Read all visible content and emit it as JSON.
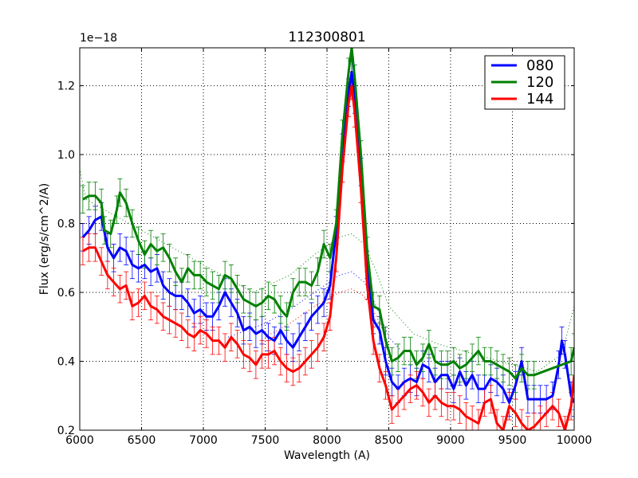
{
  "chart_data": {
    "type": "line",
    "title": "112300801",
    "xlabel": "Wavelength (A)",
    "ylabel": "Flux (erg/s/cm^2/A)",
    "y_offset_label": "1e−18",
    "xlim": [
      6000,
      10000
    ],
    "ylim": [
      0.2,
      1.31
    ],
    "x_ticks": [
      6000,
      6500,
      7000,
      7500,
      8000,
      8500,
      9000,
      9500,
      10000
    ],
    "x_tick_labels": [
      "6000",
      "6500",
      "7000",
      "7500",
      "8000",
      "8500",
      "9000",
      "9500",
      "10000"
    ],
    "y_ticks": [
      0.2,
      0.4,
      0.6,
      0.8,
      1.0,
      1.2
    ],
    "y_tick_labels": [
      "0.2",
      "0.4",
      "0.6",
      "0.8",
      "1.0",
      "1.2"
    ],
    "grid": true,
    "legend_position": "top-right",
    "series": [
      {
        "name": "080",
        "color": "#0000ff",
        "points": [
          [
            6025,
            0.76
          ],
          [
            6075,
            0.78
          ],
          [
            6125,
            0.81
          ],
          [
            6175,
            0.82
          ],
          [
            6225,
            0.73
          ],
          [
            6275,
            0.7
          ],
          [
            6325,
            0.73
          ],
          [
            6375,
            0.72
          ],
          [
            6425,
            0.68
          ],
          [
            6475,
            0.67
          ],
          [
            6525,
            0.68
          ],
          [
            6575,
            0.66
          ],
          [
            6625,
            0.67
          ],
          [
            6675,
            0.62
          ],
          [
            6725,
            0.6
          ],
          [
            6775,
            0.59
          ],
          [
            6825,
            0.59
          ],
          [
            6875,
            0.57
          ],
          [
            6925,
            0.54
          ],
          [
            6975,
            0.55
          ],
          [
            7025,
            0.53
          ],
          [
            7075,
            0.53
          ],
          [
            7125,
            0.56
          ],
          [
            7175,
            0.6
          ],
          [
            7225,
            0.57
          ],
          [
            7275,
            0.54
          ],
          [
            7325,
            0.49
          ],
          [
            7375,
            0.5
          ],
          [
            7425,
            0.48
          ],
          [
            7475,
            0.49
          ],
          [
            7525,
            0.47
          ],
          [
            7575,
            0.46
          ],
          [
            7625,
            0.49
          ],
          [
            7675,
            0.46
          ],
          [
            7725,
            0.44
          ],
          [
            7775,
            0.47
          ],
          [
            7825,
            0.5
          ],
          [
            7875,
            0.53
          ],
          [
            7925,
            0.55
          ],
          [
            7975,
            0.57
          ],
          [
            8025,
            0.62
          ],
          [
            8075,
            0.78
          ],
          [
            8125,
            1.02
          ],
          [
            8175,
            1.18
          ],
          [
            8200,
            1.24
          ],
          [
            8225,
            1.16
          ],
          [
            8275,
            0.95
          ],
          [
            8325,
            0.68
          ],
          [
            8375,
            0.52
          ],
          [
            8425,
            0.49
          ],
          [
            8475,
            0.4
          ],
          [
            8525,
            0.34
          ],
          [
            8575,
            0.32
          ],
          [
            8625,
            0.34
          ],
          [
            8675,
            0.35
          ],
          [
            8725,
            0.34
          ],
          [
            8775,
            0.39
          ],
          [
            8825,
            0.38
          ],
          [
            8875,
            0.34
          ],
          [
            8925,
            0.36
          ],
          [
            8975,
            0.36
          ],
          [
            9025,
            0.32
          ],
          [
            9075,
            0.37
          ],
          [
            9125,
            0.33
          ],
          [
            9175,
            0.36
          ],
          [
            9225,
            0.32
          ],
          [
            9275,
            0.32
          ],
          [
            9325,
            0.35
          ],
          [
            9375,
            0.34
          ],
          [
            9425,
            0.32
          ],
          [
            9475,
            0.28
          ],
          [
            9525,
            0.33
          ],
          [
            9575,
            0.4
          ],
          [
            9625,
            0.29
          ],
          [
            9675,
            0.29
          ],
          [
            9725,
            0.29
          ],
          [
            9775,
            0.29
          ],
          [
            9825,
            0.3
          ],
          [
            9875,
            0.39
          ],
          [
            9900,
            0.46
          ],
          [
            9925,
            0.42
          ],
          [
            9975,
            0.3
          ],
          [
            10000,
            0.28
          ]
        ]
      },
      {
        "name": "120",
        "color": "#008000",
        "points": [
          [
            6025,
            0.87
          ],
          [
            6075,
            0.88
          ],
          [
            6125,
            0.88
          ],
          [
            6175,
            0.86
          ],
          [
            6200,
            0.78
          ],
          [
            6250,
            0.77
          ],
          [
            6300,
            0.84
          ],
          [
            6325,
            0.89
          ],
          [
            6375,
            0.86
          ],
          [
            6425,
            0.8
          ],
          [
            6475,
            0.75
          ],
          [
            6525,
            0.71
          ],
          [
            6575,
            0.74
          ],
          [
            6625,
            0.72
          ],
          [
            6675,
            0.73
          ],
          [
            6725,
            0.7
          ],
          [
            6775,
            0.66
          ],
          [
            6825,
            0.63
          ],
          [
            6875,
            0.67
          ],
          [
            6925,
            0.65
          ],
          [
            6975,
            0.65
          ],
          [
            7025,
            0.63
          ],
          [
            7075,
            0.62
          ],
          [
            7125,
            0.61
          ],
          [
            7175,
            0.65
          ],
          [
            7225,
            0.64
          ],
          [
            7275,
            0.61
          ],
          [
            7325,
            0.58
          ],
          [
            7375,
            0.57
          ],
          [
            7425,
            0.56
          ],
          [
            7475,
            0.57
          ],
          [
            7525,
            0.59
          ],
          [
            7575,
            0.58
          ],
          [
            7625,
            0.55
          ],
          [
            7675,
            0.53
          ],
          [
            7725,
            0.6
          ],
          [
            7775,
            0.63
          ],
          [
            7825,
            0.63
          ],
          [
            7875,
            0.62
          ],
          [
            7925,
            0.66
          ],
          [
            7975,
            0.74
          ],
          [
            8025,
            0.7
          ],
          [
            8075,
            0.8
          ],
          [
            8125,
            1.06
          ],
          [
            8175,
            1.24
          ],
          [
            8200,
            1.31
          ],
          [
            8225,
            1.22
          ],
          [
            8275,
            1.0
          ],
          [
            8325,
            0.72
          ],
          [
            8375,
            0.56
          ],
          [
            8425,
            0.55
          ],
          [
            8475,
            0.46
          ],
          [
            8525,
            0.4
          ],
          [
            8575,
            0.41
          ],
          [
            8625,
            0.43
          ],
          [
            8675,
            0.43
          ],
          [
            8725,
            0.39
          ],
          [
            8775,
            0.41
          ],
          [
            8825,
            0.45
          ],
          [
            8875,
            0.4
          ],
          [
            8925,
            0.39
          ],
          [
            8975,
            0.39
          ],
          [
            9025,
            0.4
          ],
          [
            9075,
            0.38
          ],
          [
            9125,
            0.39
          ],
          [
            9175,
            0.41
          ],
          [
            9225,
            0.43
          ],
          [
            9275,
            0.4
          ],
          [
            9325,
            0.4
          ],
          [
            9375,
            0.39
          ],
          [
            9425,
            0.38
          ],
          [
            9475,
            0.37
          ],
          [
            9525,
            0.35
          ],
          [
            9575,
            0.38
          ],
          [
            9625,
            0.36
          ],
          [
            9675,
            0.36
          ],
          [
            9975,
            0.4
          ],
          [
            10000,
            0.44
          ]
        ]
      },
      {
        "name": "144",
        "color": "#ff0000",
        "points": [
          [
            6025,
            0.72
          ],
          [
            6075,
            0.73
          ],
          [
            6125,
            0.73
          ],
          [
            6175,
            0.69
          ],
          [
            6225,
            0.65
          ],
          [
            6275,
            0.63
          ],
          [
            6325,
            0.61
          ],
          [
            6375,
            0.62
          ],
          [
            6425,
            0.56
          ],
          [
            6475,
            0.57
          ],
          [
            6525,
            0.59
          ],
          [
            6575,
            0.56
          ],
          [
            6625,
            0.55
          ],
          [
            6675,
            0.53
          ],
          [
            6725,
            0.52
          ],
          [
            6775,
            0.51
          ],
          [
            6825,
            0.5
          ],
          [
            6875,
            0.48
          ],
          [
            6925,
            0.47
          ],
          [
            6975,
            0.49
          ],
          [
            7025,
            0.48
          ],
          [
            7075,
            0.46
          ],
          [
            7125,
            0.46
          ],
          [
            7175,
            0.44
          ],
          [
            7225,
            0.47
          ],
          [
            7275,
            0.45
          ],
          [
            7325,
            0.42
          ],
          [
            7375,
            0.41
          ],
          [
            7425,
            0.39
          ],
          [
            7475,
            0.42
          ],
          [
            7525,
            0.42
          ],
          [
            7575,
            0.43
          ],
          [
            7625,
            0.4
          ],
          [
            7675,
            0.38
          ],
          [
            7725,
            0.37
          ],
          [
            7775,
            0.38
          ],
          [
            7825,
            0.4
          ],
          [
            7875,
            0.42
          ],
          [
            7925,
            0.44
          ],
          [
            7975,
            0.47
          ],
          [
            8025,
            0.53
          ],
          [
            8075,
            0.7
          ],
          [
            8125,
            0.96
          ],
          [
            8175,
            1.15
          ],
          [
            8200,
            1.2
          ],
          [
            8225,
            1.12
          ],
          [
            8275,
            0.9
          ],
          [
            8325,
            0.62
          ],
          [
            8375,
            0.46
          ],
          [
            8425,
            0.38
          ],
          [
            8475,
            0.33
          ],
          [
            8525,
            0.26
          ],
          [
            8575,
            0.28
          ],
          [
            8625,
            0.3
          ],
          [
            8675,
            0.32
          ],
          [
            8725,
            0.33
          ],
          [
            8775,
            0.31
          ],
          [
            8825,
            0.28
          ],
          [
            8875,
            0.3
          ],
          [
            8925,
            0.28
          ],
          [
            8975,
            0.27
          ],
          [
            9025,
            0.27
          ],
          [
            9075,
            0.26
          ],
          [
            9125,
            0.24
          ],
          [
            9175,
            0.23
          ],
          [
            9225,
            0.22
          ],
          [
            9275,
            0.28
          ],
          [
            9325,
            0.29
          ],
          [
            9375,
            0.22
          ],
          [
            9425,
            0.2
          ],
          [
            9475,
            0.27
          ],
          [
            9525,
            0.25
          ],
          [
            9575,
            0.22
          ],
          [
            9625,
            0.2
          ],
          [
            9675,
            0.21
          ],
          [
            9725,
            0.23
          ],
          [
            9775,
            0.25
          ],
          [
            9825,
            0.27
          ],
          [
            9875,
            0.25
          ],
          [
            9925,
            0.2
          ],
          [
            9975,
            0.27
          ],
          [
            10000,
            0.36
          ]
        ]
      }
    ],
    "model_curves": [
      {
        "color": "#0000ff",
        "points": [
          [
            7200,
            0.47
          ],
          [
            7500,
            0.51
          ],
          [
            7700,
            0.55
          ],
          [
            7900,
            0.6
          ],
          [
            8100,
            0.65
          ],
          [
            8200,
            0.66
          ],
          [
            8300,
            0.63
          ],
          [
            8400,
            0.56
          ],
          [
            8500,
            0.47
          ],
          [
            8600,
            0.43
          ]
        ]
      },
      {
        "color": "#008000",
        "points": [
          [
            6000,
            0.96
          ],
          [
            6050,
            0.87
          ],
          [
            7400,
            0.6
          ],
          [
            7700,
            0.65
          ],
          [
            7900,
            0.71
          ],
          [
            8100,
            0.76
          ],
          [
            8200,
            0.77
          ],
          [
            8300,
            0.74
          ],
          [
            8400,
            0.66
          ],
          [
            8500,
            0.56
          ],
          [
            8700,
            0.48
          ],
          [
            8900,
            0.45
          ],
          [
            9100,
            0.43
          ],
          [
            9300,
            0.41
          ],
          [
            9500,
            0.39
          ],
          [
            9700,
            0.37
          ],
          [
            9900,
            0.42
          ],
          [
            10000,
            0.56
          ]
        ]
      },
      {
        "color": "#ff0000",
        "points": [
          [
            7500,
            0.47
          ],
          [
            7700,
            0.51
          ],
          [
            7900,
            0.56
          ],
          [
            8100,
            0.6
          ],
          [
            8200,
            0.61
          ],
          [
            8300,
            0.59
          ],
          [
            8400,
            0.53
          ],
          [
            8500,
            0.45
          ]
        ]
      }
    ],
    "error_half_width": 0.04
  }
}
